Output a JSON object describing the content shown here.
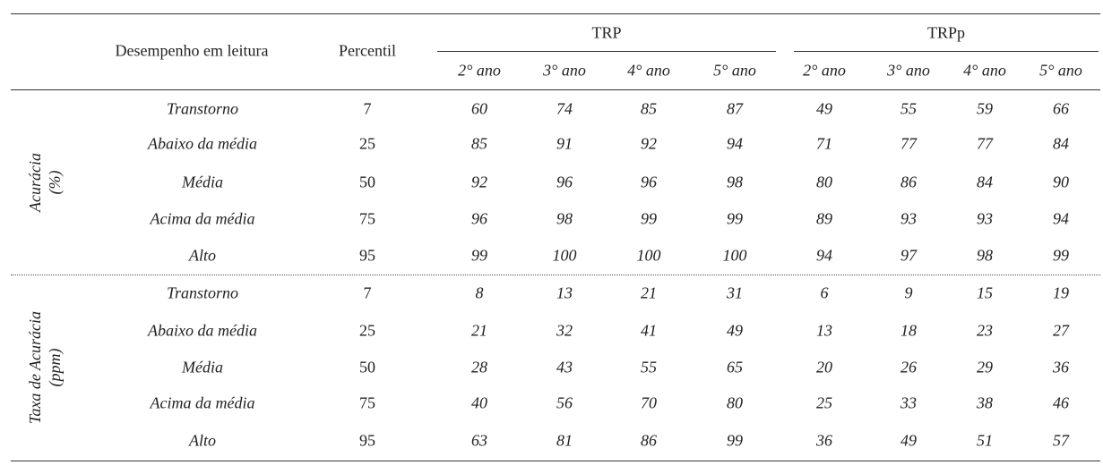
{
  "header": {
    "row_label": "Desempenho em leitura",
    "percentile": "Percentil",
    "groups": [
      {
        "name": "TRP",
        "years": [
          "2° ano",
          "3° ano",
          "4° ano",
          "5° ano"
        ]
      },
      {
        "name": "TRPp",
        "years": [
          "2° ano",
          "3° ano",
          "4° ano",
          "5° ano"
        ]
      }
    ]
  },
  "sections": [
    {
      "label": [
        "Acurácia",
        "(%)"
      ],
      "rows": [
        {
          "label": "Transtorno",
          "percentile": 7,
          "values": [
            [
              60,
              74,
              85,
              87
            ],
            [
              49,
              55,
              59,
              66
            ]
          ]
        },
        {
          "label": "Abaixo da média",
          "percentile": 25,
          "values": [
            [
              85,
              91,
              92,
              94
            ],
            [
              71,
              77,
              77,
              84
            ]
          ]
        },
        {
          "label": "Média",
          "percentile": 50,
          "values": [
            [
              92,
              96,
              96,
              98
            ],
            [
              80,
              86,
              84,
              90
            ]
          ]
        },
        {
          "label": "Acima da média",
          "percentile": 75,
          "values": [
            [
              96,
              98,
              99,
              99
            ],
            [
              89,
              93,
              93,
              94
            ]
          ]
        },
        {
          "label": "Alto",
          "percentile": 95,
          "values": [
            [
              99,
              100,
              100,
              100
            ],
            [
              94,
              97,
              98,
              99
            ]
          ]
        }
      ]
    },
    {
      "label": [
        "Taxa de Acurácia",
        "(ppm)"
      ],
      "rows": [
        {
          "label": "Transtorno",
          "percentile": 7,
          "values": [
            [
              8,
              13,
              21,
              31
            ],
            [
              6,
              9,
              15,
              19
            ]
          ]
        },
        {
          "label": "Abaixo da média",
          "percentile": 25,
          "values": [
            [
              21,
              32,
              41,
              49
            ],
            [
              13,
              18,
              23,
              27
            ]
          ]
        },
        {
          "label": "Média",
          "percentile": 50,
          "values": [
            [
              28,
              43,
              55,
              65
            ],
            [
              20,
              26,
              29,
              36
            ]
          ]
        },
        {
          "label": "Acima da média",
          "percentile": 75,
          "values": [
            [
              40,
              56,
              70,
              80
            ],
            [
              25,
              33,
              38,
              46
            ]
          ]
        },
        {
          "label": "Alto",
          "percentile": 95,
          "values": [
            [
              63,
              81,
              86,
              99
            ],
            [
              36,
              49,
              51,
              57
            ]
          ]
        }
      ]
    }
  ]
}
